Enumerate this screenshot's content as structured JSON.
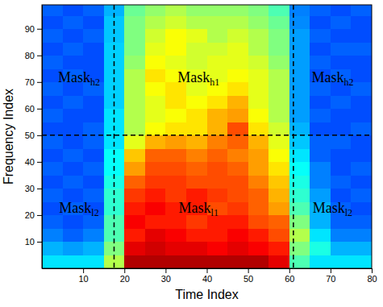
{
  "chart_data": {
    "type": "heatmap",
    "x_label": "Time Index",
    "y_label": "Frequency Index",
    "xlim": [
      0,
      80
    ],
    "ylim": [
      0,
      99
    ],
    "xticks": [
      10,
      20,
      30,
      40,
      50,
      60,
      70,
      80
    ],
    "yticks": [
      10,
      20,
      30,
      40,
      50,
      60,
      70,
      80,
      90
    ],
    "zlim": [
      0,
      1
    ],
    "x_edges": [
      0,
      5,
      10,
      15,
      20,
      25,
      30,
      35,
      40,
      45,
      50,
      55,
      60,
      65,
      70,
      75,
      80
    ],
    "y_edges": [
      0,
      5,
      10,
      15,
      20,
      25,
      30,
      35,
      40,
      45,
      50,
      55,
      60,
      65,
      70,
      75,
      80,
      85,
      90,
      95,
      100
    ],
    "z": [
      [
        0.35,
        0.35,
        0.35,
        0.55,
        0.95,
        0.95,
        0.95,
        0.95,
        0.95,
        0.95,
        0.95,
        0.9,
        0.45,
        0.35,
        0.35,
        0.35
      ],
      [
        0.3,
        0.28,
        0.3,
        0.5,
        0.9,
        0.92,
        0.9,
        0.9,
        0.88,
        0.9,
        0.88,
        0.85,
        0.5,
        0.4,
        0.3,
        0.3
      ],
      [
        0.25,
        0.22,
        0.25,
        0.45,
        0.85,
        0.9,
        0.88,
        0.85,
        0.85,
        0.88,
        0.85,
        0.8,
        0.55,
        0.35,
        0.25,
        0.25
      ],
      [
        0.22,
        0.2,
        0.22,
        0.45,
        0.88,
        0.85,
        0.85,
        0.82,
        0.85,
        0.85,
        0.8,
        0.78,
        0.5,
        0.3,
        0.22,
        0.22
      ],
      [
        0.2,
        0.22,
        0.2,
        0.42,
        0.85,
        0.88,
        0.85,
        0.85,
        0.8,
        0.82,
        0.78,
        0.72,
        0.45,
        0.3,
        0.22,
        0.2
      ],
      [
        0.22,
        0.2,
        0.22,
        0.42,
        0.82,
        0.85,
        0.82,
        0.85,
        0.82,
        0.8,
        0.78,
        0.7,
        0.42,
        0.28,
        0.2,
        0.22
      ],
      [
        0.2,
        0.22,
        0.2,
        0.4,
        0.78,
        0.82,
        0.82,
        0.8,
        0.8,
        0.8,
        0.75,
        0.68,
        0.4,
        0.25,
        0.22,
        0.2
      ],
      [
        0.22,
        0.2,
        0.22,
        0.38,
        0.72,
        0.8,
        0.8,
        0.78,
        0.8,
        0.78,
        0.72,
        0.65,
        0.38,
        0.25,
        0.2,
        0.22
      ],
      [
        0.2,
        0.22,
        0.2,
        0.38,
        0.68,
        0.78,
        0.78,
        0.75,
        0.78,
        0.75,
        0.72,
        0.62,
        0.35,
        0.22,
        0.2,
        0.2
      ],
      [
        0.22,
        0.2,
        0.22,
        0.35,
        0.6,
        0.7,
        0.72,
        0.7,
        0.75,
        0.78,
        0.7,
        0.6,
        0.32,
        0.22,
        0.22,
        0.2
      ],
      [
        0.2,
        0.2,
        0.22,
        0.35,
        0.55,
        0.62,
        0.65,
        0.65,
        0.7,
        0.8,
        0.65,
        0.58,
        0.3,
        0.2,
        0.2,
        0.22
      ],
      [
        0.22,
        0.2,
        0.2,
        0.35,
        0.55,
        0.6,
        0.62,
        0.65,
        0.7,
        0.72,
        0.62,
        0.55,
        0.28,
        0.22,
        0.2,
        0.2
      ],
      [
        0.2,
        0.22,
        0.2,
        0.33,
        0.55,
        0.6,
        0.65,
        0.62,
        0.65,
        0.7,
        0.6,
        0.55,
        0.28,
        0.2,
        0.22,
        0.2
      ],
      [
        0.22,
        0.2,
        0.22,
        0.33,
        0.55,
        0.62,
        0.65,
        0.6,
        0.62,
        0.65,
        0.6,
        0.55,
        0.28,
        0.22,
        0.2,
        0.22
      ],
      [
        0.2,
        0.22,
        0.2,
        0.33,
        0.55,
        0.65,
        0.62,
        0.6,
        0.6,
        0.62,
        0.6,
        0.55,
        0.28,
        0.2,
        0.22,
        0.2
      ],
      [
        0.22,
        0.2,
        0.2,
        0.33,
        0.52,
        0.62,
        0.6,
        0.58,
        0.6,
        0.6,
        0.58,
        0.52,
        0.28,
        0.22,
        0.2,
        0.2
      ],
      [
        0.2,
        0.22,
        0.2,
        0.33,
        0.5,
        0.6,
        0.62,
        0.58,
        0.58,
        0.6,
        0.55,
        0.5,
        0.28,
        0.2,
        0.22,
        0.22
      ],
      [
        0.22,
        0.2,
        0.22,
        0.32,
        0.5,
        0.58,
        0.62,
        0.6,
        0.55,
        0.58,
        0.55,
        0.5,
        0.28,
        0.22,
        0.2,
        0.2
      ],
      [
        0.2,
        0.22,
        0.2,
        0.32,
        0.5,
        0.55,
        0.58,
        0.55,
        0.55,
        0.55,
        0.52,
        0.48,
        0.26,
        0.2,
        0.22,
        0.2
      ],
      [
        0.22,
        0.2,
        0.22,
        0.3,
        0.48,
        0.52,
        0.55,
        0.52,
        0.52,
        0.52,
        0.5,
        0.45,
        0.25,
        0.22,
        0.2,
        0.22
      ]
    ],
    "boundaries": {
      "x": [
        17.5,
        61
      ],
      "y": [
        50
      ]
    },
    "annotations": [
      {
        "text": "Mask",
        "subscript": "h2",
        "x": 9,
        "y": 71
      },
      {
        "text": "Mask",
        "subscript": "h1",
        "x": 38,
        "y": 71
      },
      {
        "text": "Mask",
        "subscript": "h2",
        "x": 70.5,
        "y": 71
      },
      {
        "text": "Mask",
        "subscript": "l2",
        "x": 9,
        "y": 22
      },
      {
        "text": "Mask",
        "subscript": "l1",
        "x": 38,
        "y": 22
      },
      {
        "text": "Mask",
        "subscript": "l2",
        "x": 70.5,
        "y": 22
      }
    ]
  }
}
